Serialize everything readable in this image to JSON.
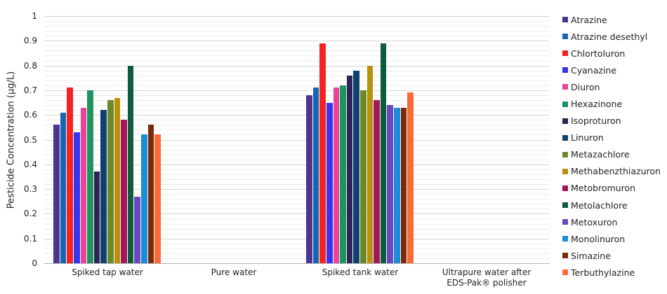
{
  "chart_data": {
    "type": "bar",
    "title": "",
    "xlabel": "",
    "ylabel": "Pesticide Concentration (µg/L)",
    "ylim": [
      0,
      1
    ],
    "yticks": [
      "0",
      "0.1",
      "0.2",
      "0.3",
      "0.4",
      "0.5",
      "0.6",
      "0.7",
      "0.8",
      "0.9",
      "1"
    ],
    "grid": true,
    "legend_position": "right",
    "categories": [
      "Spiked tap water",
      "Pure water",
      "Spiked tank water",
      "Ultrapure water after EDS-Pak® polisher"
    ],
    "category_lines": [
      [
        "Spiked tap water"
      ],
      [
        "Pure water"
      ],
      [
        "Spiked tank water"
      ],
      [
        "Ultrapure water after",
        "EDS-Pak® polisher"
      ]
    ],
    "series": [
      {
        "name": "Atrazine",
        "color": "#4b3590",
        "values": [
          0.56,
          0,
          0.68,
          0
        ]
      },
      {
        "name": "Atrazine desethyl",
        "color": "#1565b0",
        "values": [
          0.61,
          0,
          0.71,
          0
        ]
      },
      {
        "name": "Chlortoluron",
        "color": "#f52222",
        "values": [
          0.71,
          0,
          0.89,
          0
        ]
      },
      {
        "name": "Cyanazine",
        "color": "#3535f0",
        "values": [
          0.53,
          0,
          0.65,
          0
        ]
      },
      {
        "name": "Diuron",
        "color": "#e8449a",
        "values": [
          0.63,
          0,
          0.71,
          0
        ]
      },
      {
        "name": "Hexazinone",
        "color": "#1e9460",
        "values": [
          0.7,
          0,
          0.72,
          0
        ]
      },
      {
        "name": "Isoproturon",
        "color": "#2e2358",
        "values": [
          0.37,
          0,
          0.76,
          0
        ]
      },
      {
        "name": "Linuron",
        "color": "#0f4170",
        "values": [
          0.62,
          0,
          0.78,
          0
        ]
      },
      {
        "name": "Metazachlore",
        "color": "#6a8a2a",
        "values": [
          0.66,
          0,
          0.7,
          0
        ]
      },
      {
        "name": "Methabenzthiazuron",
        "color": "#b8900a",
        "values": [
          0.67,
          0,
          0.8,
          0
        ]
      },
      {
        "name": "Metobromuron",
        "color": "#a01858",
        "values": [
          0.58,
          0,
          0.66,
          0
        ]
      },
      {
        "name": "Metolachlore",
        "color": "#0f5c3c",
        "values": [
          0.8,
          0,
          0.89,
          0
        ]
      },
      {
        "name": "Metoxuron",
        "color": "#6a48c0",
        "values": [
          0.27,
          0,
          0.64,
          0
        ]
      },
      {
        "name": "Monolinuron",
        "color": "#1e8ad8",
        "values": [
          0.52,
          0,
          0.63,
          0
        ]
      },
      {
        "name": "Simazine",
        "color": "#7a2a08",
        "values": [
          0.56,
          0,
          0.63,
          0
        ]
      },
      {
        "name": "Terbuthylazine",
        "color": "#fa6a3a",
        "values": [
          0.52,
          0,
          0.69,
          0
        ]
      }
    ]
  }
}
